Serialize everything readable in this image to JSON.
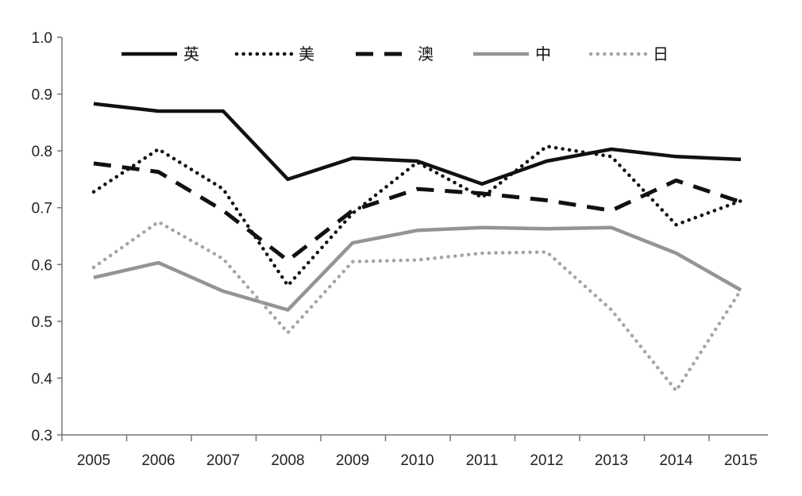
{
  "chart_data": {
    "type": "line",
    "title": "",
    "xlabel": "",
    "ylabel": "",
    "x": [
      "2005",
      "2006",
      "2007",
      "2008",
      "2009",
      "2010",
      "2011",
      "2012",
      "2013",
      "2014",
      "2015"
    ],
    "ylim": [
      0.3,
      1.0
    ],
    "yticks": [
      "0.3",
      "0.4",
      "0.5",
      "0.6",
      "0.7",
      "0.8",
      "0.9",
      "1.0"
    ],
    "grid": false,
    "legend_position": "top",
    "series": [
      {
        "name": "英",
        "style": "solid",
        "color": "#111111",
        "values": [
          0.883,
          0.87,
          0.87,
          0.75,
          0.787,
          0.782,
          0.742,
          0.782,
          0.803,
          0.79,
          0.785
        ]
      },
      {
        "name": "美",
        "style": "dotted",
        "color": "#111111",
        "values": [
          0.728,
          0.803,
          0.733,
          0.563,
          0.69,
          0.78,
          0.718,
          0.808,
          0.79,
          0.67,
          0.712
        ]
      },
      {
        "name": "澳",
        "style": "dashed",
        "color": "#111111",
        "values": [
          0.778,
          0.763,
          0.695,
          0.607,
          0.695,
          0.733,
          0.725,
          0.713,
          0.695,
          0.748,
          0.71
        ]
      },
      {
        "name": "中",
        "style": "solid",
        "color": "#9a9292",
        "values": [
          0.577,
          0.603,
          0.553,
          0.52,
          0.638,
          0.66,
          0.665,
          0.663,
          0.665,
          0.62,
          0.555
        ]
      },
      {
        "name": "日",
        "style": "dotted",
        "color": "#a9a3a3",
        "values": [
          0.595,
          0.675,
          0.61,
          0.48,
          0.605,
          0.608,
          0.62,
          0.622,
          0.52,
          0.378,
          0.555
        ]
      }
    ]
  }
}
